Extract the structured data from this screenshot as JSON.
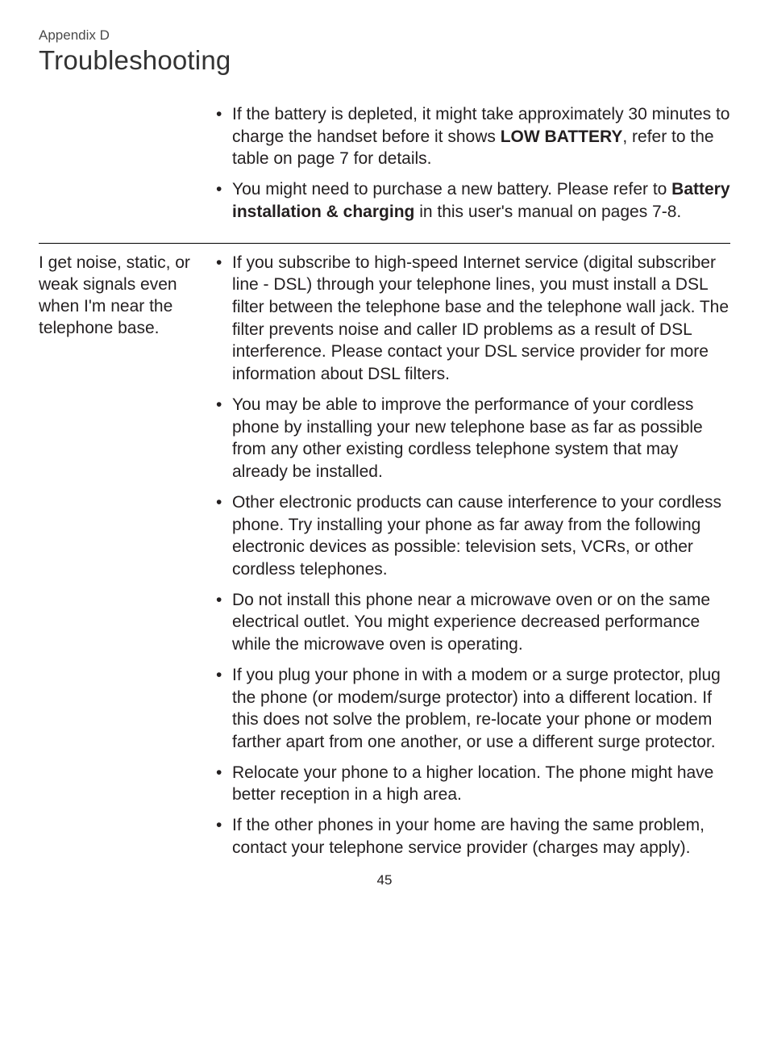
{
  "header": {
    "appendix": "Appendix D",
    "title": "Troubleshooting"
  },
  "sections": [
    {
      "problem": "",
      "items": [
        {
          "pre": "If the battery is depleted, it might take approximately 30 minutes to charge the handset before it shows ",
          "bold1": "LOW BATTERY",
          "mid": ", refer to the table on page 7 for details.",
          "bold2": "",
          "post": ""
        },
        {
          "pre": "You might need to purchase a new battery. Please refer to ",
          "bold1": "Battery installation & charging",
          "mid": " in this user's manual on pages 7-8.",
          "bold2": "",
          "post": ""
        }
      ]
    },
    {
      "problem": "I get noise, static, or weak signals even when I'm near the telephone base.",
      "items": [
        {
          "pre": "If you subscribe to high-speed Internet service (digital subscriber line - DSL) through your telephone lines, you must install a DSL filter between the telephone base and the telephone wall jack. The filter prevents noise and caller ID problems as a result of DSL interference. Please contact your DSL service provider for more information about DSL filters.",
          "bold1": "",
          "mid": "",
          "bold2": "",
          "post": ""
        },
        {
          "pre": "You may be able to improve the performance of your cordless phone by installing your new telephone base as far as possible from any other existing cordless telephone system that may already be installed.",
          "bold1": "",
          "mid": "",
          "bold2": "",
          "post": ""
        },
        {
          "pre": "Other electronic products can cause interference to your cordless phone. Try installing your phone as far away from the following electronic devices as possible: television sets, VCRs, or other cordless telephones.",
          "bold1": "",
          "mid": "",
          "bold2": "",
          "post": ""
        },
        {
          "pre": "Do not install this phone near a microwave oven or on the same electrical outlet. You might experience decreased performance while the microwave oven is operating.",
          "bold1": "",
          "mid": "",
          "bold2": "",
          "post": ""
        },
        {
          "pre": "If you plug your phone in with a modem or a surge protector, plug the phone (or modem/surge protector) into a different location. If this does not solve the problem, re-locate your phone or modem farther apart from one another, or use a different surge protector.",
          "bold1": "",
          "mid": "",
          "bold2": "",
          "post": ""
        },
        {
          "pre": "Relocate your phone to a higher location. The phone might have better reception in a high area.",
          "bold1": "",
          "mid": "",
          "bold2": "",
          "post": ""
        },
        {
          "pre": "If the other phones in your home are having the same problem, contact your telephone service provider (charges may apply).",
          "bold1": "",
          "mid": "",
          "bold2": "",
          "post": ""
        }
      ]
    }
  ],
  "page_number": "45"
}
